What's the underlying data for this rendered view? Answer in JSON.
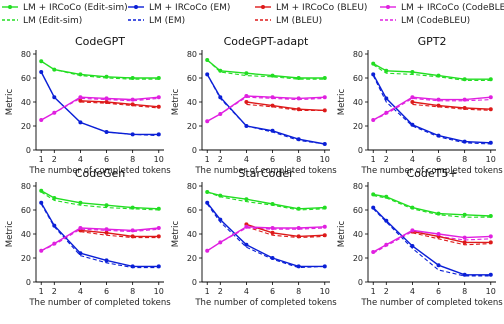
{
  "legend": [
    {
      "name": "LM + IRCoCo (Edit-sim)",
      "color": "#22dd22",
      "style": "solid",
      "marker": true
    },
    {
      "name": "LM + IRCoCo (EM)",
      "color": "#0a1fd6",
      "style": "solid",
      "marker": true
    },
    {
      "name": "LM + IRCoCo (BLEU)",
      "color": "#dd1a1a",
      "style": "solid",
      "marker": true
    },
    {
      "name": "LM + IRCoCo (CodeBLEU)",
      "color": "#e020e0",
      "style": "solid",
      "marker": true
    },
    {
      "name": "LM (Edit-sim)",
      "color": "#22dd22",
      "style": "dashed",
      "marker": false
    },
    {
      "name": "LM (EM)",
      "color": "#0a1fd6",
      "style": "dashed",
      "marker": false
    },
    {
      "name": "LM (BLEU)",
      "color": "#dd1a1a",
      "style": "dashed",
      "marker": false
    },
    {
      "name": "LM (CodeBLEU)",
      "color": "#e020e0",
      "style": "dashed",
      "marker": false
    }
  ],
  "chart_data": [
    {
      "type": "line",
      "title": "CodeGPT",
      "xlabel": "The number of completed tokens",
      "ylabel": "Metric",
      "ylim": [
        0,
        80
      ],
      "xticks": [
        1,
        2,
        4,
        6,
        8,
        10
      ],
      "yticks": [
        0,
        20,
        40,
        60,
        80
      ],
      "series": [
        {
          "name": "LM + IRCoCo (Edit-sim)",
          "x": [
            1,
            2,
            4,
            6,
            8,
            10
          ],
          "values": [
            74,
            67,
            63,
            61,
            60,
            60
          ]
        },
        {
          "name": "LM (Edit-sim)",
          "x": [
            1,
            2,
            4,
            6,
            8,
            10
          ],
          "values": [
            74,
            67,
            62,
            60,
            59,
            59
          ]
        },
        {
          "name": "LM + IRCoCo (EM)",
          "x": [
            1,
            2,
            4,
            6,
            8,
            10
          ],
          "values": [
            65,
            44,
            23,
            15,
            13,
            13
          ]
        },
        {
          "name": "LM (EM)",
          "x": [
            1,
            2,
            4,
            6,
            8,
            10
          ],
          "values": [
            65,
            44,
            23,
            15,
            13,
            12
          ]
        },
        {
          "name": "LM + IRCoCo (BLEU)",
          "x": [
            4,
            6,
            8,
            10
          ],
          "values": [
            41,
            40,
            38,
            36
          ]
        },
        {
          "name": "LM (BLEU)",
          "x": [
            4,
            6,
            8,
            10
          ],
          "values": [
            40,
            39,
            37,
            35
          ]
        },
        {
          "name": "LM + IRCoCo (CodeBLEU)",
          "x": [
            1,
            2,
            4,
            6,
            8,
            10
          ],
          "values": [
            25,
            31,
            44,
            43,
            42,
            44
          ]
        },
        {
          "name": "LM (CodeBLEU)",
          "x": [
            1,
            2,
            4,
            6,
            8,
            10
          ],
          "values": [
            25,
            31,
            43,
            42,
            41,
            43
          ]
        }
      ]
    },
    {
      "type": "line",
      "title": "CodeGPT-adapt",
      "xlabel": "The number of completed tokens",
      "ylabel": "Metric",
      "ylim": [
        0,
        80
      ],
      "xticks": [
        1,
        2,
        4,
        6,
        8,
        10
      ],
      "yticks": [
        0,
        20,
        40,
        60,
        80
      ],
      "series": [
        {
          "name": "LM + IRCoCo (Edit-sim)",
          "x": [
            1,
            2,
            4,
            6,
            8,
            10
          ],
          "values": [
            75,
            66,
            64,
            62,
            60,
            60
          ]
        },
        {
          "name": "LM (Edit-sim)",
          "x": [
            1,
            2,
            4,
            6,
            8,
            10
          ],
          "values": [
            75,
            65,
            62,
            61,
            59,
            59
          ]
        },
        {
          "name": "LM + IRCoCo (EM)",
          "x": [
            1,
            2,
            4,
            6,
            8,
            10
          ],
          "values": [
            63,
            44,
            20,
            16,
            9,
            5
          ]
        },
        {
          "name": "LM (EM)",
          "x": [
            1,
            2,
            4,
            6,
            8,
            10
          ],
          "values": [
            63,
            43,
            20,
            15,
            8,
            5
          ]
        },
        {
          "name": "LM + IRCoCo (BLEU)",
          "x": [
            4,
            6,
            8,
            10
          ],
          "values": [
            40,
            37,
            34,
            33
          ]
        },
        {
          "name": "LM (BLEU)",
          "x": [
            4,
            6,
            8,
            10
          ],
          "values": [
            38,
            36,
            33,
            33
          ]
        },
        {
          "name": "LM + IRCoCo (CodeBLEU)",
          "x": [
            1,
            2,
            4,
            6,
            8,
            10
          ],
          "values": [
            24,
            30,
            45,
            44,
            43,
            44
          ]
        },
        {
          "name": "LM (CodeBLEU)",
          "x": [
            1,
            2,
            4,
            6,
            8,
            10
          ],
          "values": [
            24,
            30,
            44,
            43,
            42,
            43
          ]
        }
      ]
    },
    {
      "type": "line",
      "title": "GPT2",
      "xlabel": "The number of completed tokens",
      "ylabel": "Metric",
      "ylim": [
        0,
        80
      ],
      "xticks": [
        1,
        2,
        4,
        6,
        8,
        10
      ],
      "yticks": [
        0,
        20,
        40,
        60,
        80
      ],
      "series": [
        {
          "name": "LM + IRCoCo (Edit-sim)",
          "x": [
            1,
            2,
            4,
            6,
            8,
            10
          ],
          "values": [
            72,
            66,
            65,
            62,
            59,
            59
          ]
        },
        {
          "name": "LM (Edit-sim)",
          "x": [
            1,
            2,
            4,
            6,
            8,
            10
          ],
          "values": [
            71,
            64,
            63,
            61,
            58,
            58
          ]
        },
        {
          "name": "LM + IRCoCo (EM)",
          "x": [
            1,
            2,
            4,
            6,
            8,
            10
          ],
          "values": [
            63,
            43,
            21,
            12,
            7,
            6
          ]
        },
        {
          "name": "LM (EM)",
          "x": [
            1,
            2,
            4,
            6,
            8,
            10
          ],
          "values": [
            62,
            40,
            20,
            11,
            6,
            5
          ]
        },
        {
          "name": "LM + IRCoCo (BLEU)",
          "x": [
            4,
            6,
            8,
            10
          ],
          "values": [
            40,
            37,
            35,
            34
          ]
        },
        {
          "name": "LM (BLEU)",
          "x": [
            4,
            6,
            8,
            10
          ],
          "values": [
            38,
            36,
            34,
            33
          ]
        },
        {
          "name": "LM + IRCoCo (CodeBLEU)",
          "x": [
            1,
            2,
            4,
            6,
            8,
            10
          ],
          "values": [
            25,
            31,
            44,
            42,
            42,
            44
          ]
        },
        {
          "name": "LM (CodeBLEU)",
          "x": [
            1,
            2,
            4,
            6,
            8,
            10
          ],
          "values": [
            25,
            30,
            43,
            41,
            41,
            42
          ]
        }
      ]
    },
    {
      "type": "line",
      "title": "CodeGen",
      "xlabel": "The number of completed tokens",
      "ylabel": "Metric",
      "ylim": [
        0,
        80
      ],
      "xticks": [
        1,
        2,
        4,
        6,
        8,
        10
      ],
      "yticks": [
        0,
        20,
        40,
        60,
        80
      ],
      "series": [
        {
          "name": "LM + IRCoCo (Edit-sim)",
          "x": [
            1,
            2,
            4,
            6,
            8,
            10
          ],
          "values": [
            76,
            70,
            66,
            64,
            62,
            61
          ]
        },
        {
          "name": "LM (Edit-sim)",
          "x": [
            1,
            2,
            4,
            6,
            8,
            10
          ],
          "values": [
            75,
            68,
            64,
            62,
            61,
            60
          ]
        },
        {
          "name": "LM + IRCoCo (EM)",
          "x": [
            1,
            2,
            4,
            6,
            8,
            10
          ],
          "values": [
            66,
            47,
            24,
            18,
            13,
            13
          ]
        },
        {
          "name": "LM (EM)",
          "x": [
            1,
            2,
            4,
            6,
            8,
            10
          ],
          "values": [
            65,
            46,
            22,
            16,
            12,
            12
          ]
        },
        {
          "name": "LM + IRCoCo (BLEU)",
          "x": [
            4,
            6,
            8,
            10
          ],
          "values": [
            43,
            41,
            38,
            38
          ]
        },
        {
          "name": "LM (BLEU)",
          "x": [
            4,
            6,
            8,
            10
          ],
          "values": [
            42,
            39,
            37,
            37
          ]
        },
        {
          "name": "LM + IRCoCo (CodeBLEU)",
          "x": [
            1,
            2,
            4,
            6,
            8,
            10
          ],
          "values": [
            26,
            32,
            45,
            44,
            43,
            45
          ]
        },
        {
          "name": "LM (CodeBLEU)",
          "x": [
            1,
            2,
            4,
            6,
            8,
            10
          ],
          "values": [
            26,
            31,
            44,
            43,
            42,
            44
          ]
        }
      ]
    },
    {
      "type": "line",
      "title": "StarCoder",
      "xlabel": "The number of completed tokens",
      "ylabel": "Metric",
      "ylim": [
        0,
        80
      ],
      "xticks": [
        1,
        2,
        4,
        6,
        8,
        10
      ],
      "yticks": [
        0,
        20,
        40,
        60,
        80
      ],
      "series": [
        {
          "name": "LM + IRCoCo (Edit-sim)",
          "x": [
            1,
            2,
            4,
            6,
            8,
            10
          ],
          "values": [
            75,
            72,
            69,
            65,
            61,
            62
          ]
        },
        {
          "name": "LM (Edit-sim)",
          "x": [
            1,
            2,
            4,
            6,
            8,
            10
          ],
          "values": [
            75,
            71,
            67,
            64,
            60,
            61
          ]
        },
        {
          "name": "LM + IRCoCo (EM)",
          "x": [
            1,
            2,
            4,
            6,
            8,
            10
          ],
          "values": [
            66,
            52,
            31,
            20,
            13,
            13
          ]
        },
        {
          "name": "LM (EM)",
          "x": [
            1,
            2,
            4,
            6,
            8,
            10
          ],
          "values": [
            65,
            50,
            29,
            19,
            12,
            13
          ]
        },
        {
          "name": "LM + IRCoCo (BLEU)",
          "x": [
            4,
            6,
            8,
            10
          ],
          "values": [
            48,
            41,
            38,
            39
          ]
        },
        {
          "name": "LM (BLEU)",
          "x": [
            4,
            6,
            8,
            10
          ],
          "values": [
            46,
            39,
            37,
            38
          ]
        },
        {
          "name": "LM + IRCoCo (CodeBLEU)",
          "x": [
            1,
            2,
            4,
            6,
            8,
            10
          ],
          "values": [
            26,
            33,
            46,
            45,
            45,
            46
          ]
        },
        {
          "name": "LM (CodeBLEU)",
          "x": [
            1,
            2,
            4,
            6,
            8,
            10
          ],
          "values": [
            26,
            33,
            45,
            44,
            44,
            45
          ]
        }
      ]
    },
    {
      "type": "line",
      "title": "CodeT5+",
      "xlabel": "The number of completed tokens",
      "ylabel": "Metric",
      "ylim": [
        0,
        80
      ],
      "xticks": [
        1,
        2,
        4,
        6,
        8,
        10
      ],
      "yticks": [
        0,
        20,
        40,
        60,
        80
      ],
      "series": [
        {
          "name": "LM + IRCoCo (Edit-sim)",
          "x": [
            1,
            2,
            4,
            6,
            8,
            10
          ],
          "values": [
            73,
            71,
            62,
            57,
            56,
            55
          ]
        },
        {
          "name": "LM (Edit-sim)",
          "x": [
            1,
            2,
            4,
            6,
            8,
            10
          ],
          "values": [
            72,
            70,
            61,
            56,
            54,
            54
          ]
        },
        {
          "name": "LM + IRCoCo (EM)",
          "x": [
            1,
            2,
            4,
            6,
            8,
            10
          ],
          "values": [
            62,
            51,
            30,
            14,
            6,
            6
          ]
        },
        {
          "name": "LM (EM)",
          "x": [
            1,
            2,
            4,
            6,
            8,
            10
          ],
          "values": [
            61,
            50,
            28,
            10,
            5,
            5
          ]
        },
        {
          "name": "LM + IRCoCo (BLEU)",
          "x": [
            4,
            6,
            8,
            10
          ],
          "values": [
            42,
            38,
            33,
            33
          ]
        },
        {
          "name": "LM (BLEU)",
          "x": [
            4,
            6,
            8,
            10
          ],
          "values": [
            41,
            36,
            31,
            32
          ]
        },
        {
          "name": "LM + IRCoCo (CodeBLEU)",
          "x": [
            1,
            2,
            4,
            6,
            8,
            10
          ],
          "values": [
            25,
            31,
            43,
            40,
            37,
            38
          ]
        },
        {
          "name": "LM (CodeBLEU)",
          "x": [
            1,
            2,
            4,
            6,
            8,
            10
          ],
          "values": [
            24,
            30,
            42,
            38,
            35,
            36
          ]
        }
      ]
    }
  ]
}
